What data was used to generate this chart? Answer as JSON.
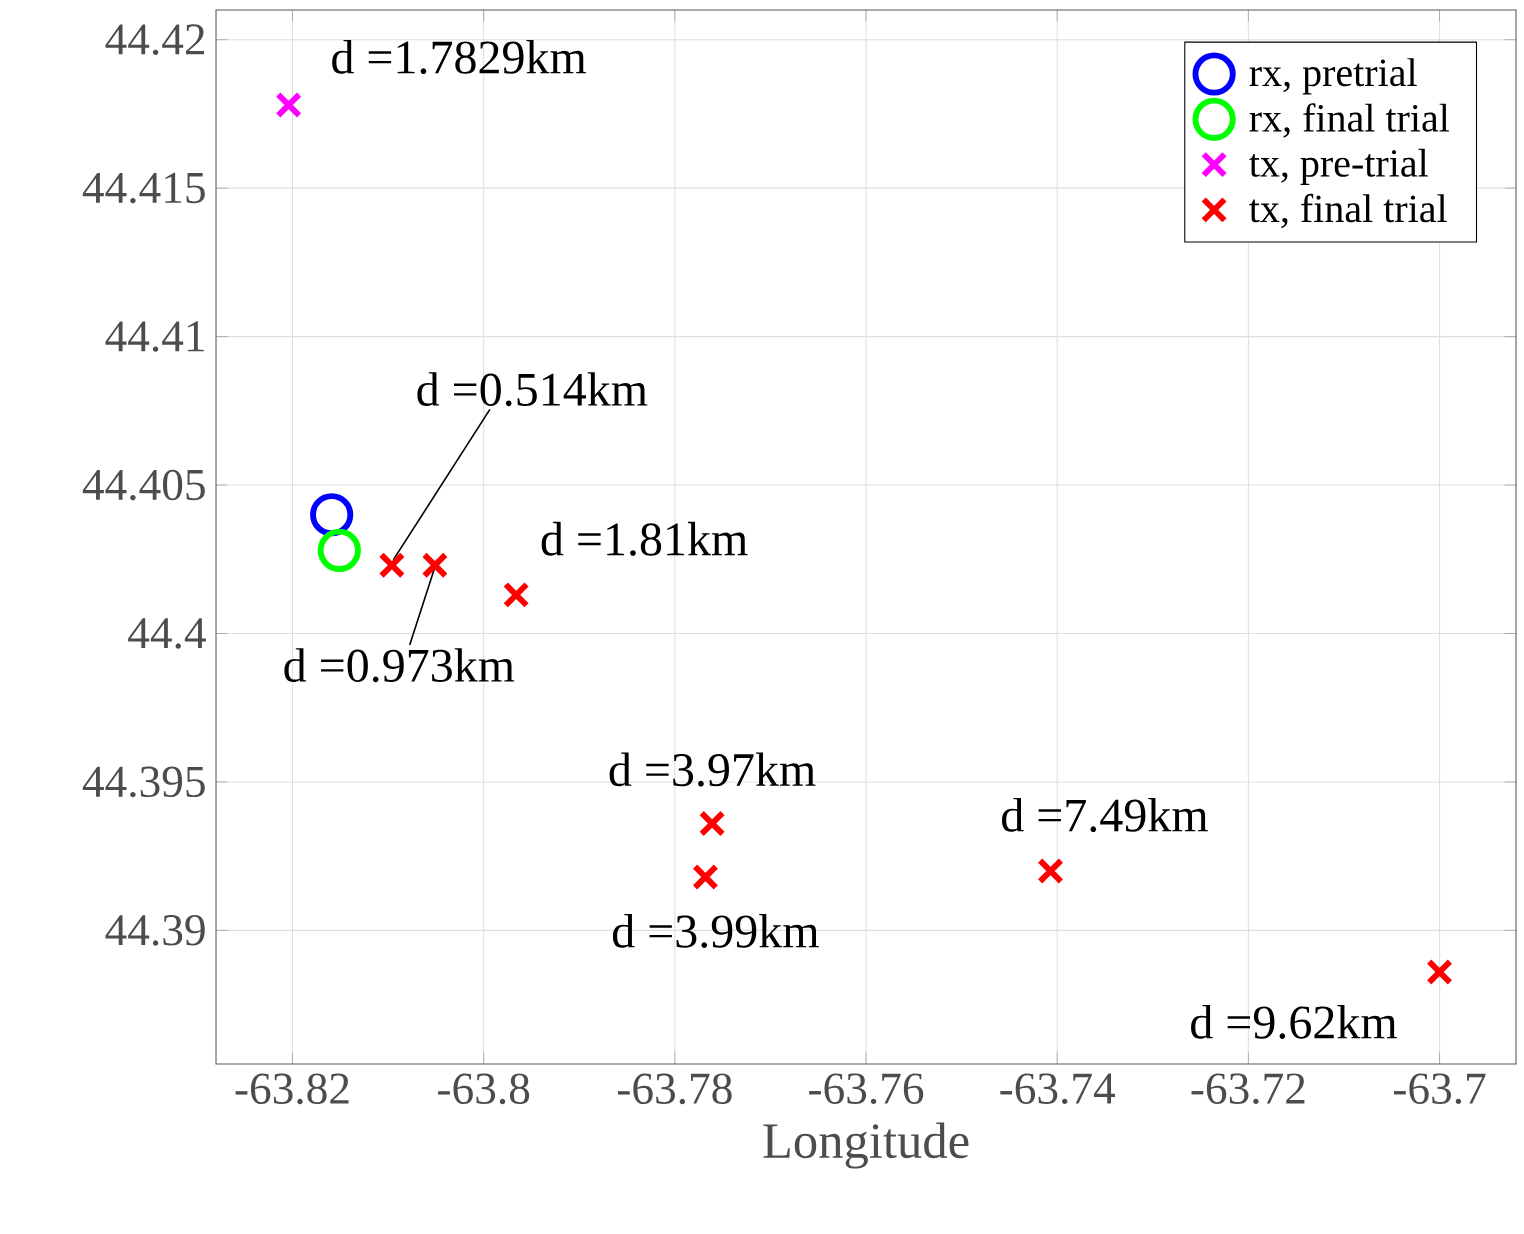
{
  "chart_data": {
    "type": "scatter",
    "xlabel": "Longitude",
    "xlim": [
      -63.828,
      -63.692
    ],
    "ylim": [
      44.3855,
      44.421
    ],
    "xticks": [
      -63.82,
      -63.8,
      -63.78,
      -63.76,
      -63.74,
      -63.72,
      -63.7
    ],
    "yticks": [
      44.39,
      44.395,
      44.4,
      44.405,
      44.41,
      44.415,
      44.42
    ],
    "grid": true,
    "legend": "top right",
    "series": [
      {
        "name": "rx, pretrial",
        "color": "#0000ff",
        "marker": "circle",
        "x": [
          -63.8159
        ],
        "values": [
          44.404
        ]
      },
      {
        "name": "rx, final trial",
        "color": "#00ff00",
        "marker": "circle",
        "x": [
          -63.8151
        ],
        "values": [
          44.4028
        ]
      },
      {
        "name": "tx, pre-trial",
        "color": "#ff00ff",
        "marker": "cross",
        "x": [
          -63.8204
        ],
        "values": [
          44.4178
        ]
      },
      {
        "name": "tx, final trial",
        "color": "#ff0000",
        "marker": "cross",
        "x": [
          -63.8096,
          -63.8051,
          -63.7966,
          -63.7761,
          -63.7768,
          -63.7407,
          -63.7
        ],
        "values": [
          44.4023,
          44.4023,
          44.4013,
          44.3936,
          44.3918,
          44.392,
          44.3886
        ]
      }
    ],
    "annotations": [
      {
        "text": "d =1.7829km",
        "x": -63.8204,
        "y": 44.4178
      },
      {
        "text": "d =0.514km",
        "x": -63.8096,
        "y": 44.4023
      },
      {
        "text": "d =0.973km",
        "x": -63.8051,
        "y": 44.4023
      },
      {
        "text": "d =1.81km",
        "x": -63.7966,
        "y": 44.4013
      },
      {
        "text": "d =3.97km",
        "x": -63.7761,
        "y": 44.3936
      },
      {
        "text": "d =3.99km",
        "x": -63.7768,
        "y": 44.3918
      },
      {
        "text": "d =7.49km",
        "x": -63.7407,
        "y": 44.392
      },
      {
        "text": "d =9.62km",
        "x": -63.7,
        "y": 44.3886
      }
    ]
  }
}
